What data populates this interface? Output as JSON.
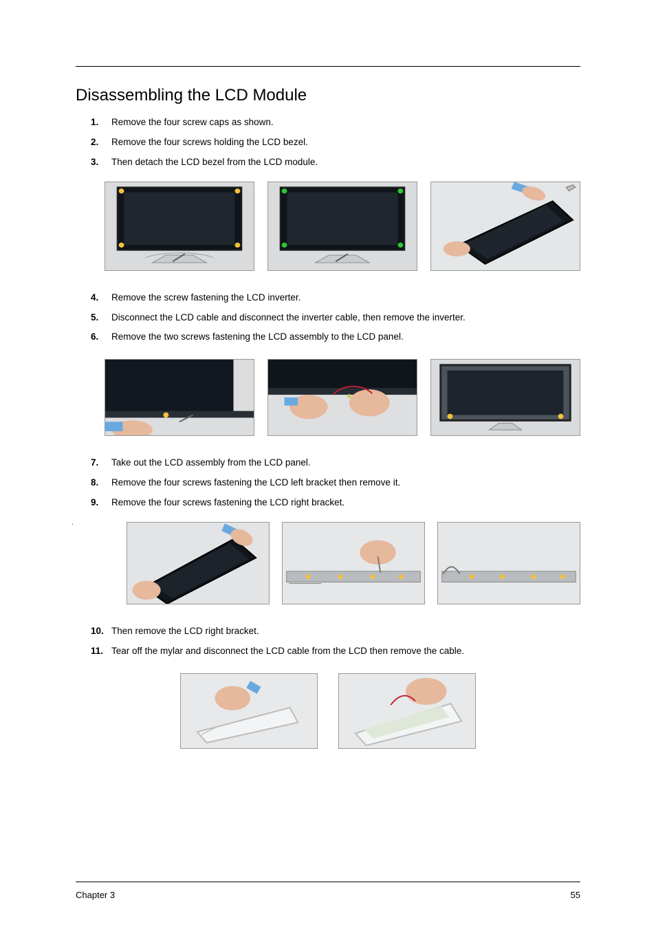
{
  "heading": "Disassembling the LCD Module",
  "stepsA": [
    {
      "n": "1.",
      "t": "Remove the four screw caps as shown."
    },
    {
      "n": "2.",
      "t": "Remove the four screws holding the LCD bezel."
    },
    {
      "n": "3.",
      "t": "Then detach the LCD bezel from the LCD module."
    }
  ],
  "stepsB": [
    {
      "n": "4.",
      "t": "Remove the screw fastening the LCD inverter."
    },
    {
      "n": "5.",
      "t": "Disconnect the LCD cable and disconnect the inverter cable, then remove the inverter."
    },
    {
      "n": "6.",
      "t": "Remove the two screws fastening the LCD assembly to the LCD panel."
    }
  ],
  "stepsC": [
    {
      "n": "7.",
      "t": "Take out the LCD assembly from the LCD panel."
    },
    {
      "n": "8.",
      "t": "Remove the four screws fastening the LCD left bracket then remove it."
    },
    {
      "n": "9.",
      "t": "Remove the four screws fastening the LCD right bracket."
    }
  ],
  "stepsD": [
    {
      "n": "10.",
      "t": "Then remove the LCD right bracket."
    },
    {
      "n": "11.",
      "t": "Tear off the mylar and disconnect the LCD cable from the LCD then remove the cable."
    }
  ],
  "footer": {
    "chapter": "Chapter 3",
    "page": "55"
  },
  "colors": {
    "text": "#000000",
    "bg": "#ffffff",
    "ph_bg_top": "#d0d2d4",
    "ph_bg_bot": "#bfc2c5",
    "screen_dark": "#1a1f24",
    "screw_mark": "#f2c23b",
    "skin": "#e6b89c",
    "glove_blue": "#6aa9e0",
    "table": "#dedfe1"
  },
  "svg": {
    "row1_a": {
      "type": "lcd-front-dark",
      "screw_dots": 4,
      "screw_color": "#f2c23b"
    },
    "row1_b": {
      "type": "lcd-front-dark",
      "screw_dots": 4,
      "screw_color": "#28c23a"
    },
    "row1_c": {
      "type": "lcd-detach-hands"
    },
    "row2_a": {
      "type": "inverter-screw"
    },
    "row2_b": {
      "type": "inverter-cable-hands"
    },
    "row2_c": {
      "type": "panel-two-screws"
    },
    "row3_a": {
      "type": "panel-lift"
    },
    "row3_b": {
      "type": "bracket-strip",
      "dots": 4
    },
    "row3_c": {
      "type": "bracket-strip",
      "dots": 4
    },
    "row4_a": {
      "type": "white-panel-hand"
    },
    "row4_b": {
      "type": "white-panel-cable"
    }
  }
}
